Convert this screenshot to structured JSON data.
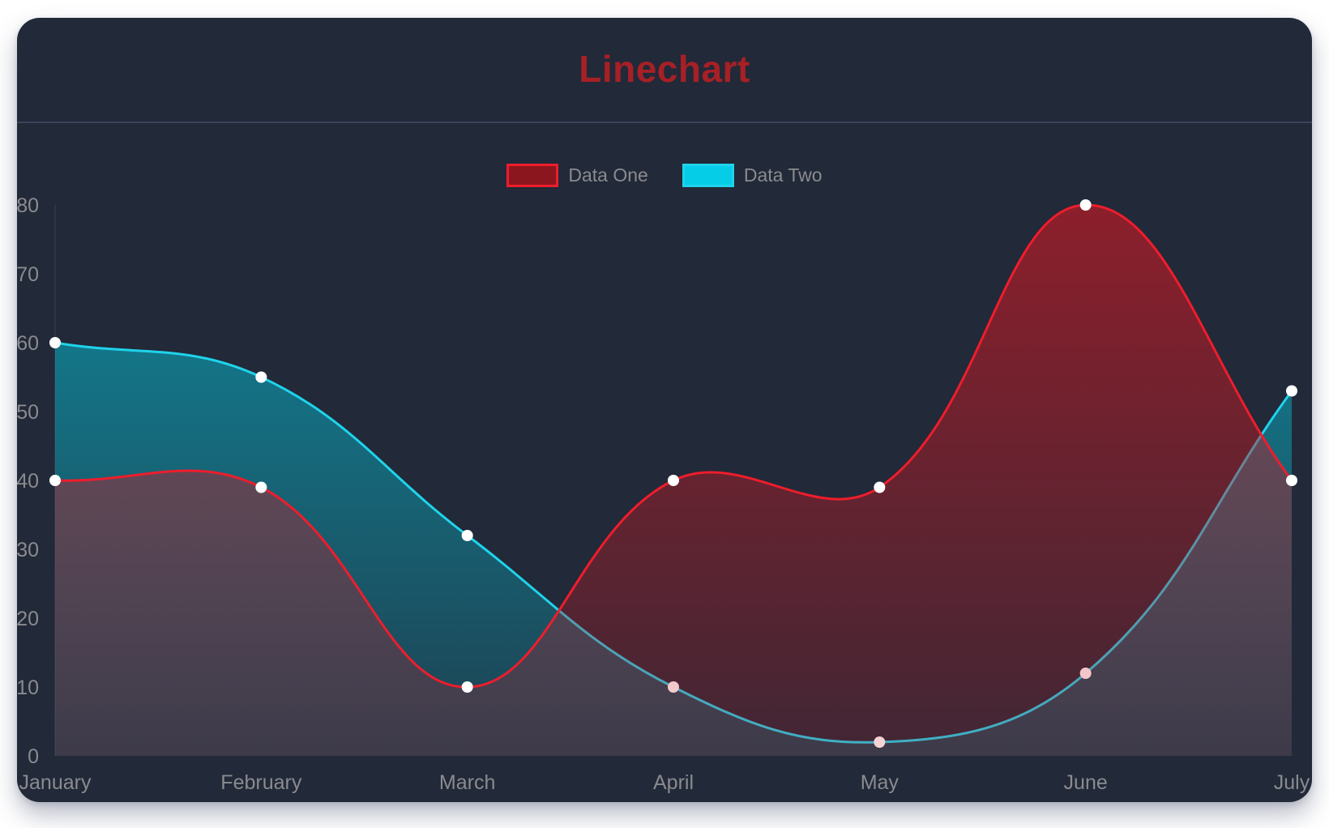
{
  "title": {
    "text": "Linechart",
    "color": "#a62026"
  },
  "colors": {
    "page_bg": "#ffffff",
    "card_bg": "#222938",
    "divider": "#3a445a"
  },
  "chart_data": {
    "type": "line",
    "title": "Linechart",
    "categories": [
      "January",
      "February",
      "March",
      "April",
      "May",
      "June",
      "July"
    ],
    "series": [
      {
        "name": "Data One",
        "values": [
          40,
          39,
          10,
          40,
          39,
          80,
          40
        ],
        "line_color": "#ee1d2c",
        "fill_rgb": "205,25,35",
        "fill_alpha_top": 0.62,
        "fill_alpha_bottom": 0.18,
        "legend_fill": "#8c161d",
        "point_color": "#ffffff"
      },
      {
        "name": "Data Two",
        "values": [
          60,
          55,
          32,
          10,
          2,
          12,
          53
        ],
        "line_color": "#1fd3ea",
        "fill_rgb": "0,213,236",
        "fill_alpha_top": 0.55,
        "fill_alpha_bottom": 0.14,
        "legend_fill": "#06cde7",
        "point_color": "#ffffff"
      }
    ],
    "xlabel": "",
    "ylabel": "",
    "ylim": [
      0,
      80
    ],
    "yticks": [
      0,
      10,
      20,
      30,
      40,
      50,
      60,
      70,
      80
    ],
    "grid": false,
    "legend_position": "top",
    "curve_tension": 0.4,
    "fill_to_baseline": true,
    "tick_color": "#8a8b90",
    "axis_line_color": "rgba(255,255,255,0.06)",
    "point_radius": 7
  }
}
